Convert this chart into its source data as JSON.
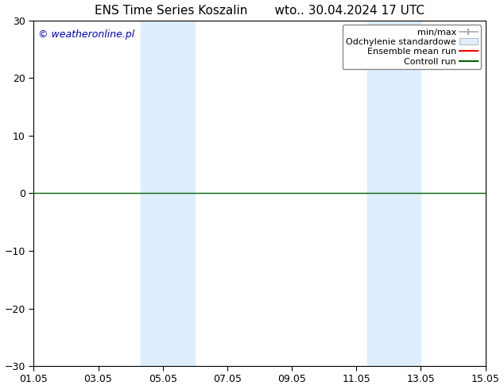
{
  "title": "ENS Time Series Koszalin       wto.. 30.04.2024 17 UTC",
  "ylim": [
    -30,
    30
  ],
  "yticks": [
    -30,
    -20,
    -10,
    0,
    10,
    20,
    30
  ],
  "xtick_labels": [
    "01.05",
    "03.05",
    "05.05",
    "07.05",
    "09.05",
    "11.05",
    "13.05",
    "15.05"
  ],
  "xtick_positions": [
    0,
    2,
    4,
    6,
    8,
    10,
    12,
    14
  ],
  "xlim": [
    0,
    14
  ],
  "shaded_bands": [
    {
      "x_start": 3.33,
      "x_end": 5.0
    },
    {
      "x_start": 10.33,
      "x_end": 12.0
    }
  ],
  "zero_line_color": "#006400",
  "zero_line_y": 0,
  "background_color": "#ffffff",
  "plot_bg_color": "#ffffff",
  "watermark_text": "© weatheronline.pl",
  "watermark_color": "#0000cd",
  "legend_items": [
    {
      "label": "min/max",
      "color": "#aaaaaa",
      "style": "errbar"
    },
    {
      "label": "Odchylenie standardowe",
      "color": "#ddeeff",
      "style": "box"
    },
    {
      "label": "Ensemble mean run",
      "color": "#ff0000",
      "style": "line"
    },
    {
      "label": "Controll run",
      "color": "#006400",
      "style": "line"
    }
  ],
  "title_fontsize": 11,
  "tick_fontsize": 9,
  "legend_fontsize": 8,
  "watermark_fontsize": 9,
  "band_color": "#ddeeff"
}
